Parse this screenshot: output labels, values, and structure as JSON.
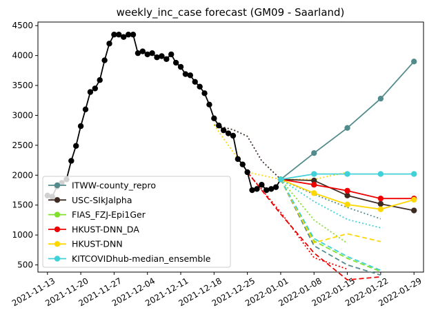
{
  "chart_data": {
    "type": "line",
    "title": "weekly_inc_case forecast (GM09 - Saarland)",
    "xlabel": "",
    "ylabel": "",
    "x_ticks": [
      "2021-11-13",
      "2021-11-20",
      "2021-11-27",
      "2021-12-04",
      "2021-12-11",
      "2021-12-18",
      "2021-12-25",
      "2022-01-01",
      "2022-01-08",
      "2022-01-15",
      "2022-01-22",
      "2022-01-29"
    ],
    "y_ticks": [
      500,
      1000,
      1500,
      2000,
      2500,
      3000,
      3500,
      4000,
      4500
    ],
    "xlim": [
      "2021-11-11",
      "2022-01-31"
    ],
    "ylim": [
      380,
      4560
    ],
    "legend_position": "lower-left",
    "truth": {
      "color": "#000000",
      "points": [
        [
          "2021-11-13",
          1660
        ],
        [
          "2021-11-14",
          1640
        ],
        [
          "2021-11-15",
          1810
        ],
        [
          "2021-11-16",
          1870
        ],
        [
          "2021-11-17",
          1930
        ],
        [
          "2021-11-18",
          2240
        ],
        [
          "2021-11-19",
          2490
        ],
        [
          "2021-11-20",
          2820
        ],
        [
          "2021-11-21",
          3100
        ],
        [
          "2021-11-22",
          3390
        ],
        [
          "2021-11-23",
          3450
        ],
        [
          "2021-11-24",
          3590
        ],
        [
          "2021-11-25",
          3920
        ],
        [
          "2021-11-26",
          4200
        ],
        [
          "2021-11-27",
          4350
        ],
        [
          "2021-11-28",
          4350
        ],
        [
          "2021-11-29",
          4310
        ],
        [
          "2021-11-30",
          4350
        ],
        [
          "2021-12-01",
          4350
        ],
        [
          "2021-12-02",
          4040
        ],
        [
          "2021-12-03",
          4070
        ],
        [
          "2021-12-04",
          4020
        ],
        [
          "2021-12-05",
          4040
        ],
        [
          "2021-12-06",
          3970
        ],
        [
          "2021-12-07",
          3990
        ],
        [
          "2021-12-08",
          3940
        ],
        [
          "2021-12-09",
          4020
        ],
        [
          "2021-12-10",
          3880
        ],
        [
          "2021-12-11",
          3810
        ],
        [
          "2021-12-12",
          3690
        ],
        [
          "2021-12-13",
          3670
        ],
        [
          "2021-12-14",
          3560
        ],
        [
          "2021-12-15",
          3480
        ],
        [
          "2021-12-16",
          3370
        ],
        [
          "2021-12-17",
          3180
        ],
        [
          "2021-12-18",
          2950
        ],
        [
          "2021-12-19",
          2830
        ],
        [
          "2021-12-20",
          2750
        ],
        [
          "2021-12-21",
          2700
        ],
        [
          "2021-12-22",
          2660
        ],
        [
          "2021-12-23",
          2270
        ],
        [
          "2021-12-24",
          2180
        ],
        [
          "2021-12-25",
          2050
        ],
        [
          "2021-12-26",
          1750
        ],
        [
          "2021-12-27",
          1770
        ],
        [
          "2021-12-28",
          1840
        ],
        [
          "2021-12-29",
          1750
        ],
        [
          "2021-12-30",
          1770
        ],
        [
          "2021-12-31",
          1800
        ],
        [
          "2022-01-01",
          1930
        ]
      ]
    },
    "series": [
      {
        "name": "ITWW-county_repro",
        "color": "#528b8b",
        "points": [
          [
            "2022-01-01",
            1930
          ],
          [
            "2022-01-08",
            2370
          ],
          [
            "2022-01-15",
            2790
          ],
          [
            "2022-01-22",
            3280
          ],
          [
            "2022-01-29",
            3900
          ]
        ],
        "dashed": [
          {
            "style": "dotted",
            "points": [
              [
                "2022-01-01",
                1930
              ],
              [
                "2022-01-08",
                1680
              ],
              [
                "2022-01-15",
                1460
              ],
              [
                "2022-01-22",
                1270
              ]
            ]
          },
          {
            "style": "dashed",
            "points": [
              [
                "2022-01-01",
                1930
              ],
              [
                "2022-01-08",
                820
              ],
              [
                "2022-01-15",
                500
              ],
              [
                "2022-01-22",
                330
              ]
            ]
          }
        ]
      },
      {
        "name": "USC-SIkJalpha",
        "color": "#3d2b22",
        "points": [
          [
            "2022-01-01",
            1930
          ],
          [
            "2022-01-08",
            1910
          ],
          [
            "2022-01-15",
            1660
          ],
          [
            "2022-01-22",
            1520
          ],
          [
            "2022-01-29",
            1410
          ]
        ],
        "dashed": [
          {
            "style": "dotted",
            "points": [
              [
                "2021-12-18",
                2840
              ],
              [
                "2021-12-22",
                2760
              ],
              [
                "2021-12-25",
                2650
              ],
              [
                "2021-12-28",
                2240
              ],
              [
                "2022-01-01",
                1930
              ]
            ]
          }
        ]
      },
      {
        "name": "FIAS_FZJ-Epi1Ger",
        "color": "#7fe12e",
        "points": [],
        "dashed": [
          {
            "style": "dotted",
            "points": [
              [
                "2022-01-01",
                1930
              ],
              [
                "2022-01-08",
                1250
              ],
              [
                "2022-01-15",
                860
              ]
            ]
          },
          {
            "style": "dashed",
            "points": [
              [
                "2022-01-01",
                1930
              ],
              [
                "2022-01-08",
                900
              ],
              [
                "2022-01-15",
                610
              ],
              [
                "2022-01-22",
                390
              ]
            ]
          }
        ]
      },
      {
        "name": "HKUST-DNN_DA",
        "color": "#ee0000",
        "points": [
          [
            "2022-01-01",
            1930
          ],
          [
            "2022-01-08",
            1840
          ],
          [
            "2022-01-15",
            1740
          ],
          [
            "2022-01-22",
            1610
          ],
          [
            "2022-01-29",
            1610
          ]
        ],
        "dashed": [
          {
            "style": "dotted",
            "points": [
              [
                "2021-12-25",
                2050
              ],
              [
                "2022-01-01",
                1380
              ],
              [
                "2022-01-08",
                620
              ],
              [
                "2022-01-15",
                430
              ]
            ]
          },
          {
            "style": "dashed",
            "points": [
              [
                "2021-12-25",
                2050
              ],
              [
                "2022-01-01",
                1350
              ],
              [
                "2022-01-08",
                700
              ],
              [
                "2022-01-15",
                250
              ],
              [
                "2022-01-22",
                300
              ]
            ]
          }
        ]
      },
      {
        "name": "HKUST-DNN",
        "color": "#ffd700",
        "points": [
          [
            "2022-01-01",
            1930
          ],
          [
            "2022-01-08",
            1700
          ],
          [
            "2022-01-15",
            1510
          ],
          [
            "2022-01-22",
            1430
          ],
          [
            "2022-01-29",
            1590
          ]
        ],
        "dashed": [
          {
            "style": "dotted",
            "points": [
              [
                "2021-12-18",
                2840
              ],
              [
                "2021-12-25",
                2050
              ],
              [
                "2022-01-01",
                1930
              ],
              [
                "2022-01-08",
                1930
              ],
              [
                "2022-01-15",
                2050
              ]
            ]
          },
          {
            "style": "dashed",
            "points": [
              [
                "2022-01-01",
                1930
              ],
              [
                "2022-01-08",
                870
              ],
              [
                "2022-01-15",
                1020
              ],
              [
                "2022-01-22",
                890
              ]
            ]
          }
        ]
      },
      {
        "name": "KITCOVIDhub-median_ensemble",
        "color": "#40d0d8",
        "points": [
          [
            "2022-01-01",
            1930
          ],
          [
            "2022-01-08",
            2020
          ],
          [
            "2022-01-15",
            2020
          ],
          [
            "2022-01-22",
            2020
          ],
          [
            "2022-01-29",
            2020
          ]
        ],
        "dashed": [
          {
            "style": "dotted",
            "points": [
              [
                "2022-01-01",
                1930
              ],
              [
                "2022-01-08",
                1560
              ],
              [
                "2022-01-15",
                1260
              ],
              [
                "2022-01-22",
                1120
              ]
            ]
          },
          {
            "style": "dashed",
            "points": [
              [
                "2022-01-01",
                1930
              ],
              [
                "2022-01-08",
                940
              ],
              [
                "2022-01-15",
                640
              ],
              [
                "2022-01-22",
                410
              ]
            ]
          }
        ]
      }
    ]
  }
}
